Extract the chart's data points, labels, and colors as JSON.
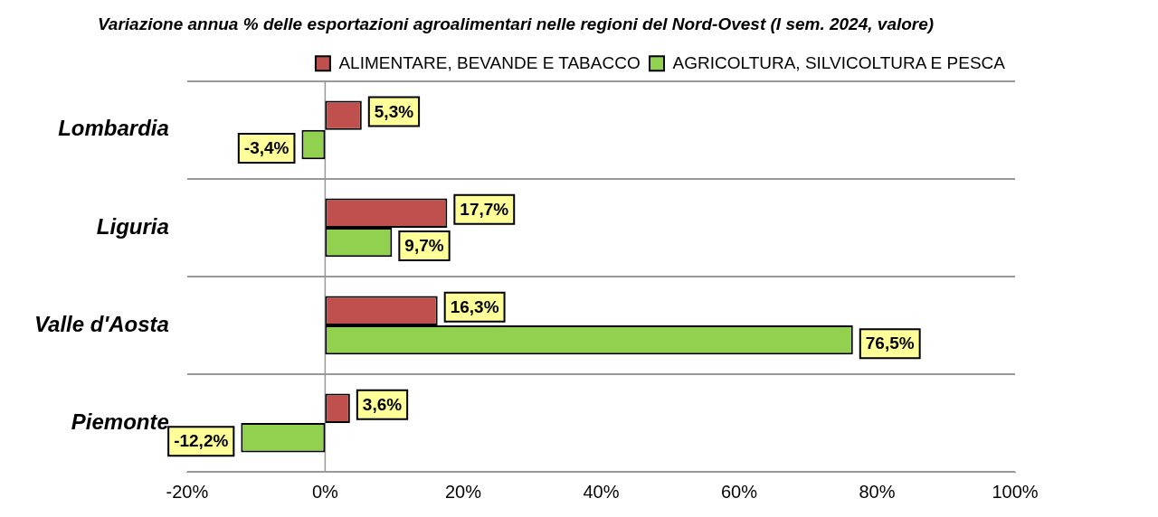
{
  "chart_data": {
    "type": "bar",
    "orientation": "horizontal",
    "title": "Variazione annua % delle esportazioni agroalimentari nelle regioni del Nord-Ovest (I sem. 2024, valore)",
    "categories": [
      "Lombardia",
      "Liguria",
      "Valle d'Aosta",
      "Piemonte"
    ],
    "series": [
      {
        "name": "ALIMENTARE, BEVANDE E TABACCO",
        "color": "#c0504d",
        "values": [
          5.3,
          17.7,
          16.3,
          3.6
        ],
        "value_labels": [
          "5,3%",
          "17,7%",
          "16,3%",
          "3,6%"
        ]
      },
      {
        "name": "AGRICOLTURA, SILVICOLTURA E PESCA",
        "color": "#92d050",
        "values": [
          -3.4,
          9.7,
          76.5,
          -12.2
        ],
        "value_labels": [
          "-3,4%",
          "9,7%",
          "76,5%",
          "-12,2%"
        ]
      }
    ],
    "xlim": [
      -20,
      100
    ],
    "xticks": [
      {
        "value": -20,
        "label": "-20%"
      },
      {
        "value": 0,
        "label": "0%"
      },
      {
        "value": 20,
        "label": "20%"
      },
      {
        "value": 40,
        "label": "40%"
      },
      {
        "value": 60,
        "label": "60%"
      },
      {
        "value": 80,
        "label": "80%"
      },
      {
        "value": 100,
        "label": "100%"
      }
    ],
    "grid": "y",
    "legend": "top right"
  }
}
